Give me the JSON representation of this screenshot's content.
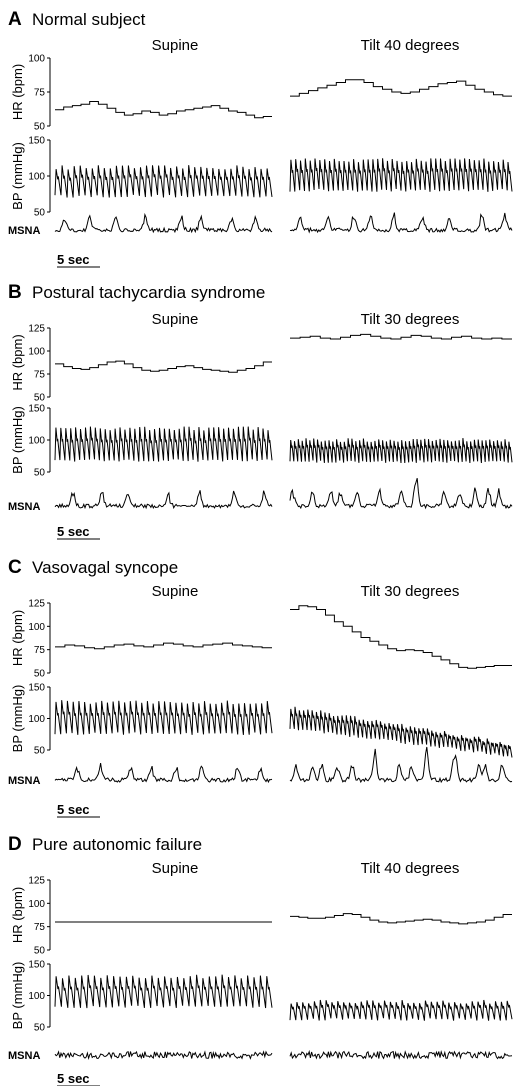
{
  "chart_data": [
    {
      "type": "line",
      "letter": "A",
      "title": "Normal subject",
      "conditions": [
        "Supine",
        "Tilt 40 degrees"
      ],
      "hr_axis": {
        "label": "HR (bpm)",
        "ticks": [
          "100",
          "75",
          "50"
        ]
      },
      "bp_axis": {
        "label": "BP (mmHg)",
        "ticks": [
          "150",
          "100",
          "50"
        ]
      },
      "msna_label": "MSNA",
      "scale_label": "5 sec",
      "supine": {
        "hr": [
          62,
          64,
          65,
          66,
          68,
          66,
          63,
          60,
          58,
          59,
          61,
          60,
          58,
          59,
          61,
          62,
          63,
          64,
          65,
          63,
          61,
          60,
          58,
          56,
          57
        ],
        "bp_sys": 112,
        "bp_dia": 72,
        "beats": 36,
        "msna_bursts": 8
      },
      "tilt": {
        "hr": [
          72,
          74,
          76,
          78,
          80,
          82,
          84,
          84,
          82,
          79,
          77,
          75,
          74,
          75,
          77,
          79,
          81,
          82,
          83,
          80,
          77,
          75,
          73,
          72
        ],
        "bp_sys": 122,
        "bp_dia": 80,
        "beats": 46,
        "msna_bursts": 9
      }
    },
    {
      "type": "line",
      "letter": "B",
      "title": "Postural tachycardia syndrome",
      "conditions": [
        "Supine",
        "Tilt 30 degrees"
      ],
      "hr_axis": {
        "label": "HR (bpm)",
        "ticks": [
          "125",
          "100",
          "75",
          "50"
        ]
      },
      "bp_axis": {
        "label": "BP (mmHg)",
        "ticks": [
          "150",
          "100",
          "50"
        ]
      },
      "msna_label": "MSNA",
      "scale_label": "5 sec",
      "supine": {
        "hr": [
          86,
          83,
          81,
          80,
          82,
          85,
          88,
          89,
          86,
          82,
          79,
          78,
          79,
          81,
          83,
          84,
          82,
          80,
          79,
          78,
          77,
          79,
          81,
          84,
          88
        ],
        "bp_sys": 118,
        "bp_dia": 68,
        "beats": 44,
        "msna_bursts": 7
      },
      "tilt": {
        "hr": [
          114,
          115,
          116,
          114,
          113,
          115,
          117,
          118,
          116,
          114,
          113,
          115,
          117,
          116,
          114,
          113,
          115,
          116,
          114,
          113,
          114,
          113
        ],
        "bp_sys": 100,
        "bp_dia": 66,
        "beats": 58,
        "msna_bursts": 14
      }
    },
    {
      "type": "line",
      "letter": "C",
      "title": "Vasovagal syncope",
      "conditions": [
        "Supine",
        "Tilt 30 degrees"
      ],
      "hr_axis": {
        "label": "HR (bpm)",
        "ticks": [
          "125",
          "100",
          "75",
          "50"
        ]
      },
      "bp_axis": {
        "label": "BP (mmHg)",
        "ticks": [
          "150",
          "100",
          "50"
        ]
      },
      "msna_label": "MSNA",
      "scale_label": "5 sec",
      "supine": {
        "hr": [
          78,
          80,
          79,
          77,
          76,
          78,
          80,
          81,
          79,
          78,
          80,
          82,
          81,
          79,
          78,
          80,
          81,
          82,
          80,
          79,
          78,
          77
        ],
        "bp_sys": 126,
        "bp_dia": 76,
        "beats": 38,
        "msna_bursts": 8
      },
      "tilt": {
        "hr": [
          118,
          122,
          121,
          118,
          112,
          105,
          100,
          94,
          88,
          84,
          80,
          76,
          74,
          75,
          74,
          72,
          68,
          64,
          60,
          56,
          55,
          56,
          57,
          58,
          58
        ],
        "bp_sys_start": 118,
        "bp_sys_end": 60,
        "bp_dia_start": 84,
        "bp_dia_end": 40,
        "beats": 52,
        "msna_bursts": 16
      }
    },
    {
      "type": "line",
      "letter": "D",
      "title": "Pure autonomic failure",
      "conditions": [
        "Supine",
        "Tilt 40 degrees"
      ],
      "hr_axis": {
        "label": "HR (bpm)",
        "ticks": [
          "125",
          "100",
          "75",
          "50"
        ]
      },
      "bp_axis": {
        "label": "BP (mmHg)",
        "ticks": [
          "150",
          "100",
          "50"
        ]
      },
      "msna_label": "MSNA",
      "scale_label": "5 sec",
      "supine": {
        "hr": [
          80,
          80,
          80,
          80,
          80,
          80,
          80,
          80,
          80,
          80,
          80,
          80,
          80,
          80,
          80,
          80,
          80,
          80,
          80,
          80,
          80,
          80
        ],
        "bp_sys": 130,
        "bp_dia": 82,
        "beats": 34,
        "msna_bursts": 0
      },
      "tilt": {
        "hr": [
          86,
          85,
          84,
          84,
          85,
          87,
          89,
          88,
          85,
          82,
          80,
          79,
          80,
          81,
          82,
          83,
          82,
          80,
          79,
          78,
          79,
          80,
          82,
          85,
          88
        ],
        "bp_sys": 90,
        "bp_dia": 62,
        "beats": 38,
        "msna_bursts": 0
      }
    }
  ]
}
